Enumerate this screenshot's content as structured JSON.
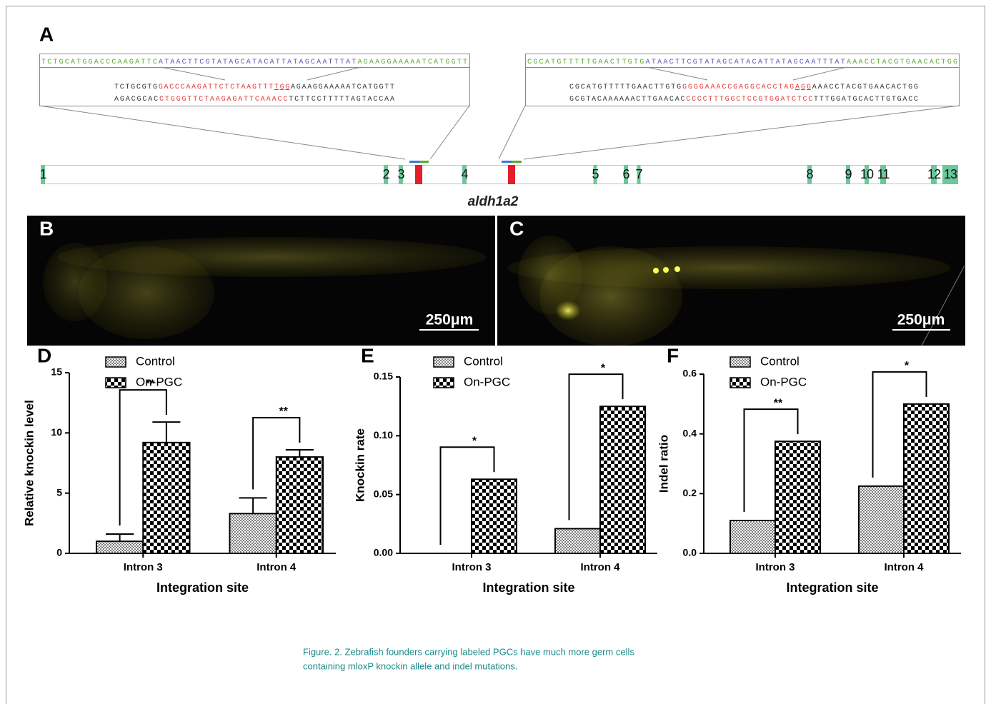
{
  "panel_a": {
    "label": "A",
    "left": {
      "top": [
        {
          "text": "TCTGCATGGACCCAAGATTC",
          "color": "#5aa832"
        },
        {
          "text": "ATAACTTCGTATAGCATACATTATAGCAATTTAT",
          "color": "#5a5ab4"
        },
        {
          "text": "AGAAGGAAAAATCATGGTT",
          "color": "#5aa832"
        }
      ],
      "sense": [
        {
          "text": "TCTGCGTG",
          "color": "#333333"
        },
        {
          "text": "GACCCAAGATTCTCTAAGTTT",
          "color": "#e03c3c"
        },
        {
          "text": "TGG",
          "color": "#e03c3c",
          "underline": true
        },
        {
          "text": "AGAAGGAAAAATCATGGTT",
          "color": "#333333"
        }
      ],
      "antisense": [
        {
          "text": "AGACGCAC",
          "color": "#333333"
        },
        {
          "text": "CTGGGTTCTAAGAGATTCAAACC",
          "color": "#e03c3c"
        },
        {
          "text": "TCTTCCTTTTTAGTACCAA",
          "color": "#333333"
        }
      ]
    },
    "right": {
      "top": [
        {
          "text": "CGCATGTTTTTGAACTTGTG",
          "color": "#5aa832"
        },
        {
          "text": "ATAACTTCGTATAGCATACATTATAGCAATTTAT",
          "color": "#5a5ab4"
        },
        {
          "text": "AAACCTACGTGAACACTGG",
          "color": "#5aa832"
        }
      ],
      "sense": [
        {
          "text": "CGCATGTTTTTGAACTTGTG",
          "color": "#333333"
        },
        {
          "text": "GGGGAAACCGAGGCACCTAG",
          "color": "#e03c3c"
        },
        {
          "text": "AGG",
          "color": "#e03c3c",
          "underline": true
        },
        {
          "text": "AAACCTACGTGAACACTGG",
          "color": "#333333"
        }
      ],
      "antisense": [
        {
          "text": "GCGTACAAAAAACTTGAACAC",
          "color": "#333333"
        },
        {
          "text": "CCCCTTTGGCTCCGTGGATCTCC",
          "color": "#e03c3c"
        },
        {
          "text": "TTTGGATGCACTTGTGACC",
          "color": "#333333"
        }
      ]
    },
    "exons": [
      "1",
      "2",
      "3",
      "4",
      "5",
      "6",
      "7",
      "8",
      "9",
      "10",
      "11",
      "12",
      "13"
    ],
    "gene": "aldh1a2"
  },
  "panel_b": {
    "label": "B",
    "scale_bar": "250μm"
  },
  "panel_c": {
    "label": "C",
    "scale_bar": "250μm"
  },
  "chart_data": [
    {
      "type": "bar",
      "label": "D",
      "y_label": "Relative knockin level",
      "x_label": "Integration site",
      "categories": [
        "Intron 3",
        "Intron 4"
      ],
      "series": [
        {
          "name": "Control",
          "color": "#808080",
          "values": [
            1.0,
            3.3
          ],
          "errors": [
            0.6,
            1.3
          ]
        },
        {
          "name": "On-PGC",
          "color": "#000000",
          "values": [
            9.2,
            8.0
          ],
          "errors": [
            1.7,
            0.6
          ]
        }
      ],
      "annotations": [
        "**",
        "**"
      ],
      "ylim": [
        0,
        15
      ],
      "yticks": [
        0,
        5,
        10,
        15
      ]
    },
    {
      "type": "bar",
      "label": "E",
      "y_label": "Knockin rate",
      "x_label": "Integration site",
      "categories": [
        "Intron 3",
        "Intron 4"
      ],
      "series": [
        {
          "name": "Control",
          "color": "#808080",
          "values": [
            0,
            0.021
          ]
        },
        {
          "name": "On-PGC",
          "color": "#000000",
          "values": [
            0.063,
            0.125
          ]
        }
      ],
      "annotations": [
        "*",
        "*"
      ],
      "ylim": [
        0,
        0.15
      ],
      "yticks": [
        {
          "value": 0,
          "label": "0.00"
        },
        0.05,
        {
          "value": 0.1,
          "label": "0.10"
        },
        0.15
      ]
    },
    {
      "type": "bar",
      "label": "F",
      "y_label": "Indel ratio",
      "x_label": "Integration site",
      "categories": [
        "Intron 3",
        "Intron 4"
      ],
      "series": [
        {
          "name": "Control",
          "color": "#808080",
          "values": [
            0.11,
            0.225
          ]
        },
        {
          "name": "On-PGC",
          "color": "#000000",
          "values": [
            0.375,
            0.5
          ]
        }
      ],
      "annotations": [
        "**",
        "*"
      ],
      "ylim": [
        0,
        0.6
      ],
      "yticks": [
        {
          "value": 0,
          "label": "0.0"
        },
        0.2,
        0.4,
        0.6
      ]
    }
  ],
  "caption": [
    "Figure. 2. Zebrafish founders carrying labeled PGCs have much more germ cells",
    "containing mloxP knockin allele and indel mutations."
  ]
}
